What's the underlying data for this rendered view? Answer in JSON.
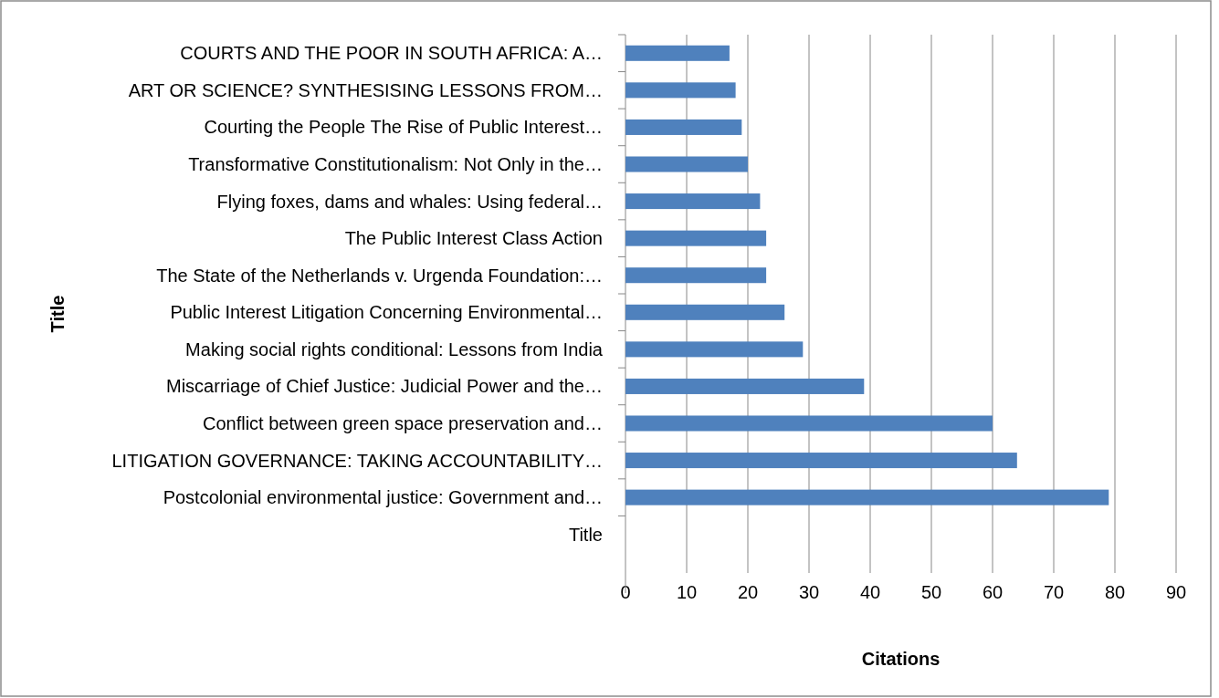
{
  "chart_data": {
    "type": "bar",
    "orientation": "horizontal",
    "xlabel": "Citations",
    "ylabel": "Title",
    "categories": [
      "COURTS AND THE POOR IN SOUTH AFRICA: A…",
      "ART OR SCIENCE? SYNTHESISING LESSONS FROM…",
      "Courting the People The Rise of Public Interest…",
      "Transformative Constitutionalism: Not Only in the…",
      "Flying foxes, dams and whales: Using federal…",
      "The Public Interest Class Action",
      "The State of the Netherlands v. Urgenda Foundation:…",
      "Public Interest Litigation Concerning Environmental…",
      "Making social rights conditional: Lessons from India",
      "Miscarriage of Chief Justice: Judicial Power and the…",
      "Conflict between green space preservation and…",
      "LITIGATION GOVERNANCE: TAKING ACCOUNTABILITY…",
      "Postcolonial environmental justice: Government and…",
      "Title"
    ],
    "values": [
      17,
      18,
      19,
      20,
      22,
      23,
      23,
      26,
      29,
      39,
      60,
      64,
      79,
      null
    ],
    "color": "#4f81bd",
    "xlim": [
      0,
      90
    ],
    "xticks": [
      0,
      10,
      20,
      30,
      40,
      50,
      60,
      70,
      80,
      90
    ],
    "grid": "x"
  }
}
